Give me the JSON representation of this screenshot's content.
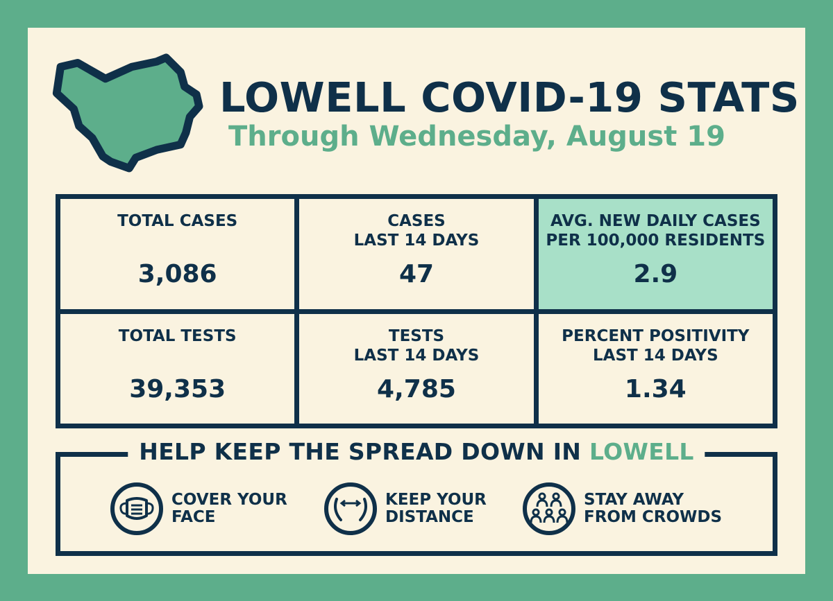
{
  "header": {
    "title": "LOWELL COVID-19 STATS",
    "subtitle": "Through Wednesday, August 19",
    "map_icon": "lowell-map-icon"
  },
  "stats": [
    {
      "label": "TOTAL CASES",
      "value": "3,086"
    },
    {
      "label": "CASES\nLAST 14 DAYS",
      "value": "47"
    },
    {
      "label": "AVG. NEW DAILY CASES\nPER 100,000 RESIDENTS",
      "value": "2.9"
    },
    {
      "label": "TOTAL TESTS",
      "value": "39,353"
    },
    {
      "label": "TESTS\nLAST 14 DAYS",
      "value": "4,785"
    },
    {
      "label": "PERCENT POSITIVITY\nLAST 14 DAYS",
      "value": "1.34"
    }
  ],
  "help": {
    "title_prefix": "HELP KEEP THE SPREAD DOWN IN",
    "title_accent": "LOWELL",
    "tips": [
      {
        "icon": "face-mask-icon",
        "text": "COVER YOUR\nFACE"
      },
      {
        "icon": "distance-icon",
        "text": "KEEP YOUR\nDISTANCE"
      },
      {
        "icon": "crowd-icon",
        "text": "STAY AWAY\nFROM CROWDS"
      }
    ]
  },
  "colors": {
    "navy": "#0f3049",
    "green": "#5dae8b",
    "cream": "#faf3e0",
    "highlight": "#a8e0c8"
  }
}
